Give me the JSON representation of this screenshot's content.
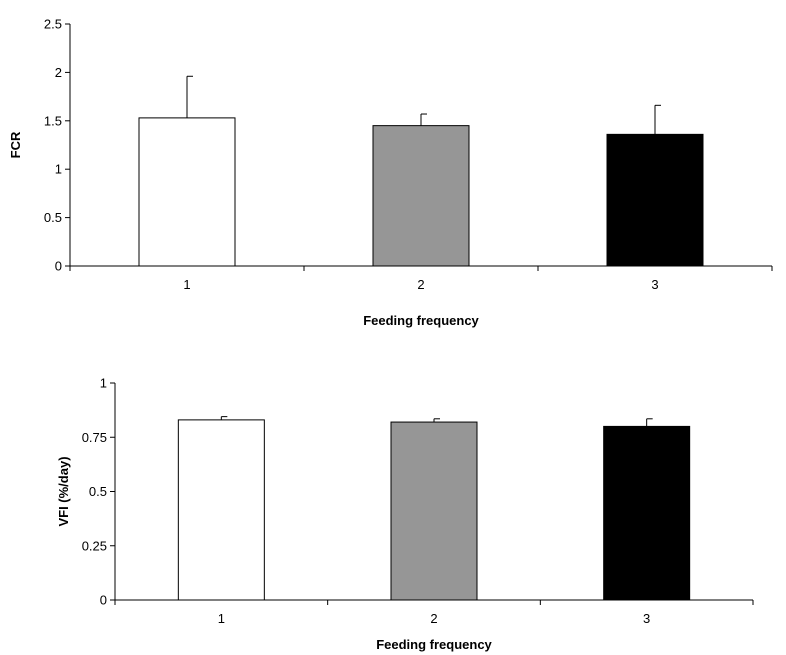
{
  "chart_data": [
    {
      "type": "bar",
      "categories": [
        "1",
        "2",
        "3"
      ],
      "values": [
        1.53,
        1.45,
        1.36
      ],
      "error": [
        0.43,
        0.12,
        0.3
      ],
      "colors": [
        "#ffffff",
        "#969696",
        "#000000"
      ],
      "xlabel": "Feeding frequency",
      "ylabel": "FCR",
      "ylim": [
        0,
        2.5
      ],
      "yticks": [
        "0",
        "0.5",
        "1",
        "1.5",
        "2",
        "2.5"
      ],
      "grid": false
    },
    {
      "type": "bar",
      "categories": [
        "1",
        "2",
        "3"
      ],
      "values": [
        0.83,
        0.82,
        0.8
      ],
      "error": [
        0.015,
        0.015,
        0.035
      ],
      "colors": [
        "#ffffff",
        "#969696",
        "#000000"
      ],
      "xlabel": "Feeding frequency",
      "ylabel": "VFI (%/day)",
      "ylim": [
        0,
        1
      ],
      "yticks": [
        "0",
        "0.25",
        "0.5",
        "0.75",
        "1"
      ],
      "grid": false
    }
  ]
}
